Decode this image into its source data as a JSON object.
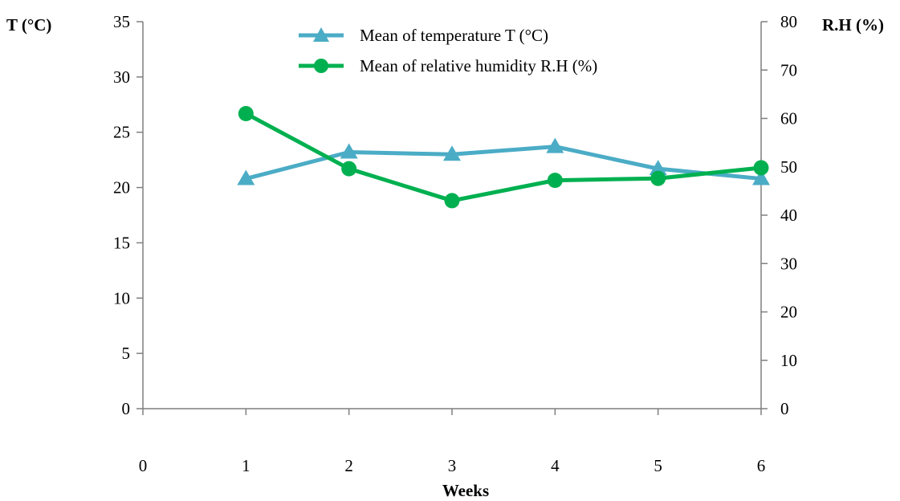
{
  "chart_data": {
    "type": "line",
    "x": [
      1,
      2,
      3,
      4,
      5,
      6
    ],
    "xlabel": "Weeks",
    "xlim": [
      0,
      6
    ],
    "xticks": [
      "0",
      "1",
      "2",
      "3",
      "4",
      "5",
      "6"
    ],
    "y_left": {
      "label": "T (°C)",
      "lim": [
        0,
        35
      ],
      "ticks": [
        "0",
        "5",
        "10",
        "15",
        "20",
        "25",
        "30",
        "35"
      ]
    },
    "y_right": {
      "label": "R.H (%)",
      "lim": [
        0,
        80
      ],
      "ticks": [
        "0",
        "10",
        "20",
        "30",
        "40",
        "50",
        "60",
        "70",
        "80"
      ]
    },
    "series": [
      {
        "name": "Mean of temperature T (°C)",
        "axis": "left",
        "marker": "triangle",
        "color": "#4bacc6",
        "values": [
          20.8,
          23.2,
          23.0,
          23.7,
          21.7,
          20.8
        ]
      },
      {
        "name": "Mean of relative humidity R.H (%)",
        "axis": "right",
        "marker": "circle",
        "color": "#00b050",
        "values": [
          61,
          49.6,
          43,
          47.2,
          47.6,
          49.8
        ]
      }
    ],
    "legend": "top-center",
    "grid": false
  }
}
